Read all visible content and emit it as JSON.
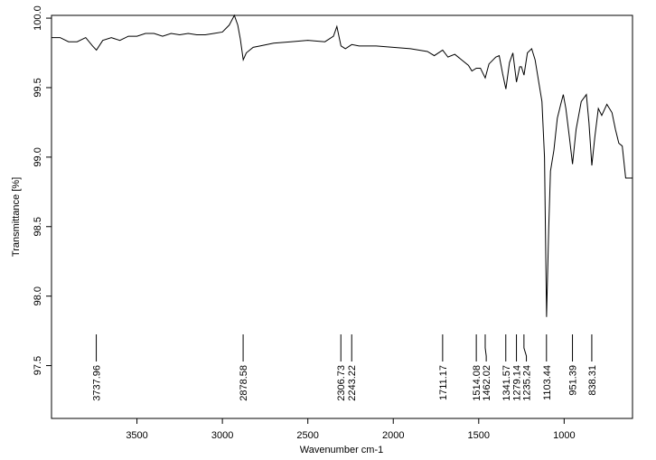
{
  "chart_data": {
    "type": "line",
    "color": "#000000",
    "xlabel": "Wavenumber cm-1",
    "ylabel": "Transmittance [%]",
    "x": [
      4000,
      3950,
      3900,
      3850,
      3800,
      3760,
      3737,
      3700,
      3650,
      3600,
      3550,
      3500,
      3450,
      3400,
      3350,
      3300,
      3250,
      3200,
      3150,
      3100,
      3050,
      3000,
      2960,
      2930,
      2910,
      2895,
      2878,
      2860,
      2820,
      2780,
      2700,
      2600,
      2500,
      2400,
      2350,
      2330,
      2306,
      2280,
      2243,
      2200,
      2100,
      2000,
      1900,
      1800,
      1760,
      1711,
      1680,
      1640,
      1600,
      1560,
      1540,
      1514,
      1490,
      1462,
      1440,
      1400,
      1380,
      1360,
      1341,
      1320,
      1300,
      1279,
      1260,
      1250,
      1235,
      1215,
      1190,
      1170,
      1150,
      1130,
      1115,
      1103,
      1090,
      1080,
      1060,
      1040,
      1020,
      1005,
      990,
      970,
      951,
      930,
      900,
      870,
      855,
      838,
      820,
      800,
      780,
      750,
      720,
      700,
      680,
      660,
      640,
      600
    ],
    "values": [
      99.86,
      99.86,
      99.83,
      99.83,
      99.86,
      99.8,
      99.77,
      99.84,
      99.86,
      99.84,
      99.87,
      99.87,
      99.89,
      99.89,
      99.87,
      99.89,
      99.88,
      99.89,
      99.88,
      99.88,
      99.89,
      99.9,
      99.95,
      100.02,
      99.95,
      99.85,
      99.7,
      99.75,
      99.79,
      99.8,
      99.82,
      99.83,
      99.84,
      99.83,
      99.87,
      99.94,
      99.8,
      99.78,
      99.81,
      99.8,
      99.8,
      99.79,
      99.78,
      99.76,
      99.73,
      99.77,
      99.72,
      99.74,
      99.7,
      99.66,
      99.62,
      99.64,
      99.64,
      99.57,
      99.67,
      99.72,
      99.73,
      99.6,
      99.49,
      99.68,
      99.75,
      99.54,
      99.65,
      99.65,
      99.59,
      99.75,
      99.78,
      99.7,
      99.55,
      99.4,
      99.0,
      97.85,
      98.5,
      98.9,
      99.05,
      99.28,
      99.38,
      99.45,
      99.35,
      99.15,
      98.95,
      99.2,
      99.4,
      99.45,
      99.25,
      98.94,
      99.15,
      99.35,
      99.3,
      99.38,
      99.32,
      99.2,
      99.1,
      99.08,
      98.85,
      98.85
    ],
    "peaks": [
      3737.96,
      2878.58,
      2306.73,
      2243.22,
      1711.17,
      1514.08,
      1462.02,
      1341.57,
      1279.14,
      1235.24,
      1103.44,
      951.39,
      838.31
    ],
    "xlim": [
      4000,
      600
    ],
    "xticks": [
      3500,
      3000,
      2500,
      2000,
      1500,
      1000
    ],
    "ylim": [
      97.12,
      100.02
    ],
    "yticks": [
      {
        "value": 100,
        "label": "100.0"
      },
      99.5,
      {
        "value": 99,
        "label": "99.0"
      },
      98.5,
      {
        "value": 98,
        "label": "98.0"
      },
      97.5
    ]
  }
}
